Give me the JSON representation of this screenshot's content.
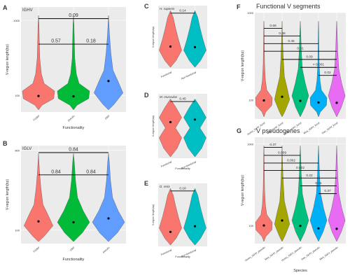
{
  "chart_data": [
    {
      "panel": "A",
      "type": "violin",
      "title": "IGHV",
      "xlabel": "Functionality",
      "ylabel": "V-region length(bp)",
      "categories": [
        "F/ORF",
        "pseudo",
        "ORF"
      ],
      "colors": [
        "#f8766d",
        "#00ba38",
        "#619cff"
      ],
      "yscale": "log",
      "ylim": [
        60,
        1500
      ],
      "yticks": [
        100,
        1000
      ],
      "ytick_labels": [
        "100",
        "1000"
      ],
      "medians": [
        98,
        97,
        155
      ],
      "comparisons": [
        {
          "from": 0,
          "to": 1,
          "label": "0.57",
          "at": 480
        },
        {
          "from": 1,
          "to": 2,
          "label": "0.18",
          "at": 480
        },
        {
          "from": 0,
          "to": 2,
          "label": "0.09",
          "at": 1050
        }
      ]
    },
    {
      "panel": "B",
      "type": "violin",
      "title": "IGLV",
      "xlabel": "Functionality",
      "ylabel": "V-region length(bp)",
      "categories": [
        "F/ORF",
        "ORF",
        "pseudo"
      ],
      "colors": [
        "#f8766d",
        "#00ba38",
        "#619cff"
      ],
      "yscale": "log",
      "ylim": [
        70,
        900
      ],
      "yticks": [
        100,
        800
      ],
      "ytick_labels": [
        "100",
        "800"
      ],
      "medians": [
        125,
        122,
        135
      ],
      "comparisons": [
        {
          "from": 0,
          "to": 1,
          "label": "0.84",
          "at": 420
        },
        {
          "from": 1,
          "to": 2,
          "label": "0.84",
          "at": 420
        },
        {
          "from": 0,
          "to": 2,
          "label": "0.84",
          "at": 750
        }
      ]
    },
    {
      "panel": "C",
      "type": "violin",
      "title": "H. sapiens",
      "xlabel": "",
      "ylabel": "V-region length(bp)",
      "categories": [
        "Functional",
        "Non-functional"
      ],
      "colors": [
        "#f8766d",
        "#00bfc4"
      ],
      "ylim": [
        0,
        10
      ],
      "yticks": [],
      "ytick_labels": [],
      "medians": [
        3.5,
        3.4
      ],
      "comparisons": [
        {
          "from": 0,
          "to": 1,
          "label": "0.14",
          "at": 8.8
        }
      ]
    },
    {
      "panel": "D",
      "type": "violin",
      "title": "M. musculus",
      "xlabel": "Functionality",
      "ylabel": "V-region length(bp)",
      "categories": [
        "Functional",
        "Non-functional"
      ],
      "colors": [
        "#f8766d",
        "#00bfc4"
      ],
      "ylim": [
        0,
        10
      ],
      "yticks": [],
      "ytick_labels": [],
      "medians": [
        5.6,
        6.0
      ],
      "comparisons": [
        {
          "from": 0,
          "to": 1,
          "label": "0.45",
          "at": 8.8
        }
      ]
    },
    {
      "panel": "E",
      "type": "violin",
      "title": "D. rerio",
      "xlabel": "Functionality",
      "ylabel": "V-region length(bp)",
      "categories": [
        "Functional",
        "Non-functional"
      ],
      "colors": [
        "#f8766d",
        "#00bfc4"
      ],
      "ylim": [
        0,
        10
      ],
      "yticks": [],
      "ytick_labels": [],
      "medians": [
        2.3,
        3.2
      ],
      "comparisons": [
        {
          "from": 0,
          "to": 1,
          "label": "0.18",
          "at": 8.8
        }
      ]
    },
    {
      "panel": "F",
      "type": "violin",
      "title": "Functional V segments",
      "xlabel": "",
      "ylabel": "V-region length(bp)",
      "categories": [
        "Homo_IGHV_funct",
        "Mus_IGHV_funct",
        "Homo_IGKV_funct",
        "Mus_IGKV_funct",
        "Dan_IGHV_funct"
      ],
      "colors": [
        "#f8766d",
        "#a3a500",
        "#00bf7d",
        "#00b0f6",
        "#e76bf3"
      ],
      "yscale": "log",
      "ylim": [
        60,
        1000
      ],
      "yticks": [
        100,
        1000
      ],
      "ytick_labels": [
        "100",
        "1000"
      ],
      "medians": [
        98,
        108,
        97,
        93,
        92
      ],
      "comparisons": [
        {
          "from": 0,
          "to": 1,
          "label": "0.69",
          "at": 660
        },
        {
          "from": 0,
          "to": 2,
          "label": "0.46",
          "at": 540
        },
        {
          "from": 0,
          "to": 3,
          "label": "0.46",
          "at": 440
        },
        {
          "from": 0,
          "to": 4,
          "label": "0.31",
          "at": 360
        },
        {
          "from": 1,
          "to": 4,
          "label": "0.09",
          "at": 290
        },
        {
          "from": 2,
          "to": 4,
          "label": "< 0.001",
          "at": 235
        },
        {
          "from": 3,
          "to": 4,
          "label": "0.02",
          "at": 190
        }
      ]
    },
    {
      "panel": "G",
      "type": "violin",
      "title": "V pseudogenes",
      "xlabel": "Species",
      "ylabel": "V-region length(bp)",
      "categories": [
        "Homo_IGHV_pseudo",
        "Mus_IGHV_pseudo",
        "Homo_IGKV_pseudo",
        "Dan_IGHV_pseudo",
        "Mus_IGKV_pseudo"
      ],
      "colors": [
        "#f8766d",
        "#a3a500",
        "#00bf7d",
        "#00b0f6",
        "#e76bf3"
      ],
      "yscale": "log",
      "ylim": [
        60,
        1200
      ],
      "yticks": [
        100,
        1000
      ],
      "ytick_labels": [
        "100",
        "1000"
      ],
      "medians": [
        100,
        115,
        99,
        92,
        91
      ],
      "comparisons": [
        {
          "from": 0,
          "to": 1,
          "label": "0.37",
          "at": 900
        },
        {
          "from": 0,
          "to": 2,
          "label": "0.009",
          "at": 720
        },
        {
          "from": 0,
          "to": 3,
          "label": "0.002",
          "at": 580
        },
        {
          "from": 0,
          "to": 4,
          "label": "0.002",
          "at": 470
        },
        {
          "from": 1,
          "to": 4,
          "label": "0.22",
          "at": 380
        },
        {
          "from": 2,
          "to": 4,
          "label": "0.01",
          "at": 305
        },
        {
          "from": 3,
          "to": 4,
          "label": "0.37",
          "at": 245
        }
      ]
    }
  ]
}
